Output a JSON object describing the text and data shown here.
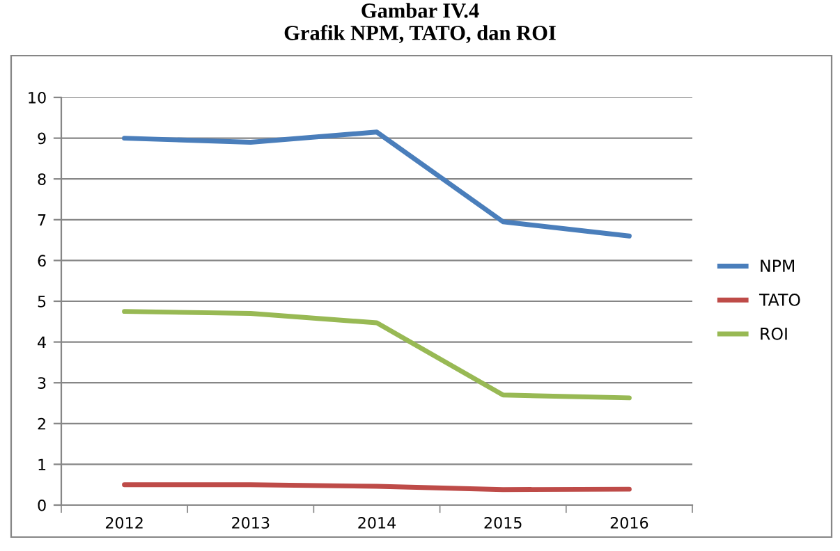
{
  "chart_data": {
    "type": "line",
    "title": "Gambar IV.4",
    "subtitle": "Grafik NPM, TATO, dan ROI",
    "categories": [
      "2012",
      "2013",
      "2014",
      "2015",
      "2016"
    ],
    "series": [
      {
        "name": "NPM",
        "color": "#4a7ebb",
        "values": [
          9.0,
          8.9,
          9.15,
          6.95,
          6.6
        ]
      },
      {
        "name": "TATO",
        "color": "#be4b48",
        "values": [
          0.5,
          0.5,
          0.46,
          0.38,
          0.39
        ]
      },
      {
        "name": "ROI",
        "color": "#98b954",
        "values": [
          4.75,
          4.7,
          4.47,
          2.7,
          2.63
        ]
      }
    ],
    "ylim": [
      0,
      10
    ],
    "yticks": [
      0,
      1,
      2,
      3,
      4,
      5,
      6,
      7,
      8,
      9,
      10
    ],
    "grid": "y",
    "legend": "right",
    "marker": "none",
    "line_style": "solid"
  }
}
